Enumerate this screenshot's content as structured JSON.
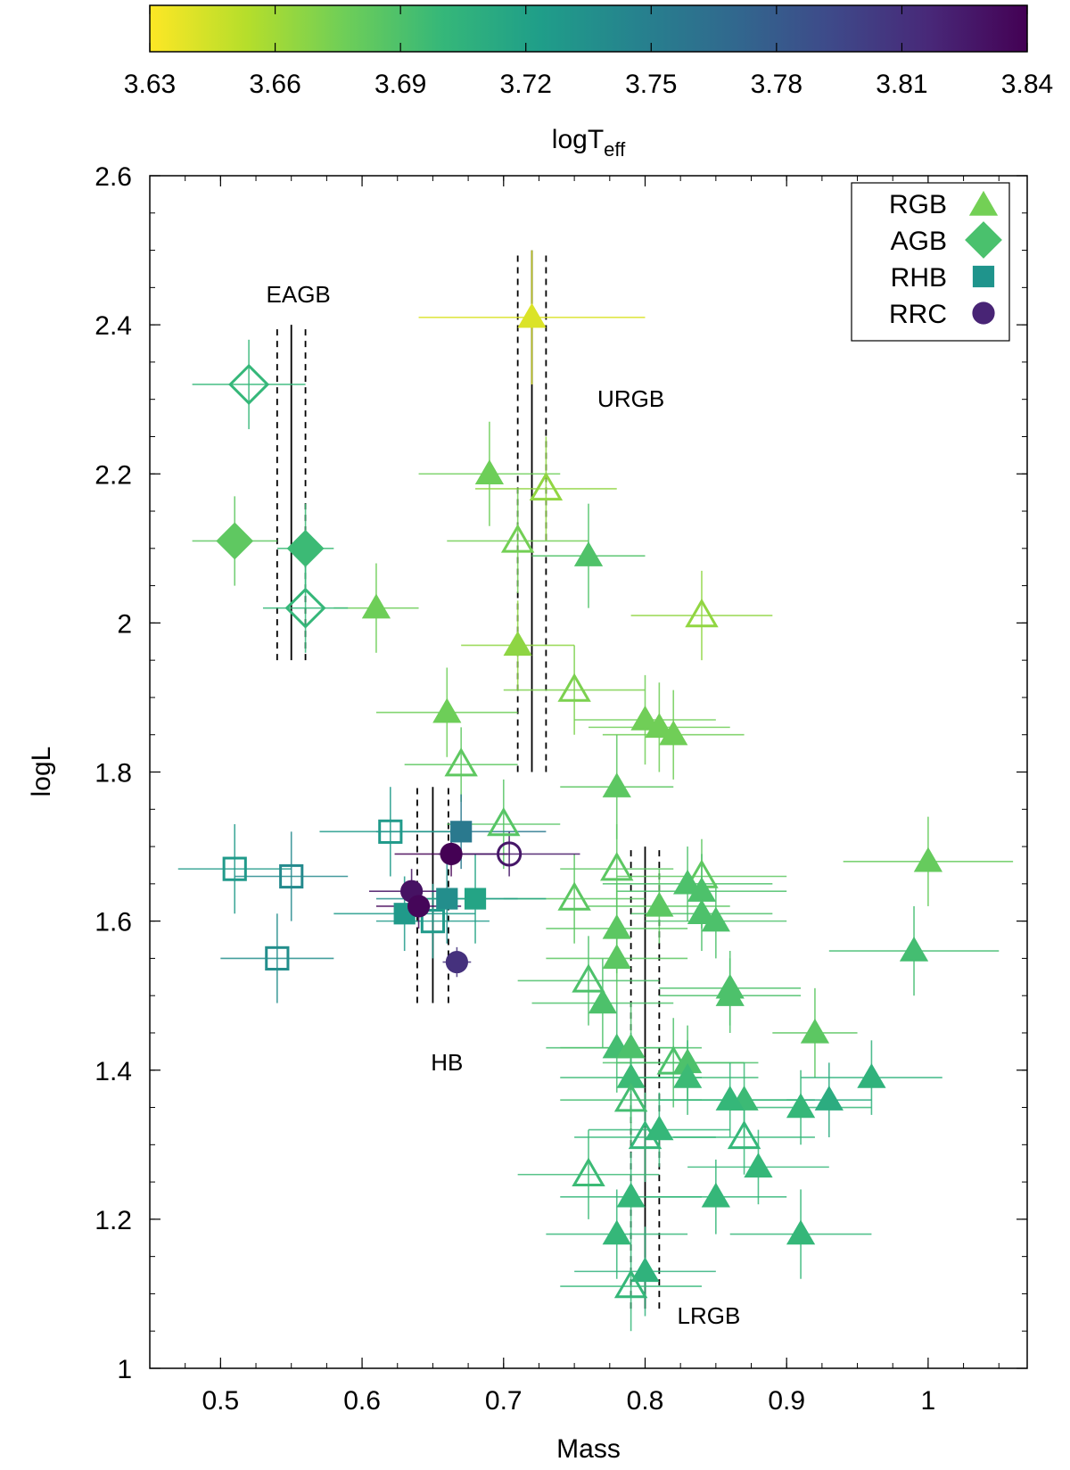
{
  "colorbar": {
    "label_main": "logT",
    "label_sub": "eff",
    "range": [
      3.63,
      3.84
    ],
    "ticks": [
      "3.63",
      "3.66",
      "3.69",
      "3.72",
      "3.75",
      "3.78",
      "3.81",
      "3.84"
    ],
    "colormap": [
      "#fde725",
      "#b5de2b",
      "#6ece58",
      "#35b779",
      "#1f9e89",
      "#26828e",
      "#31688e",
      "#3e4989",
      "#482878",
      "#440154"
    ]
  },
  "chart_data": {
    "type": "scatter",
    "xlabel": "Mass",
    "ylabel": "logL",
    "xlim": [
      0.45,
      1.07
    ],
    "ylim": [
      1.0,
      2.6
    ],
    "xticks": [
      "0.5",
      "0.6",
      "0.7",
      "0.8",
      "0.9",
      "1"
    ],
    "yticks": [
      "1",
      "1.2",
      "1.4",
      "1.6",
      "1.8",
      "2",
      "2.2",
      "2.4",
      "2.6"
    ],
    "legend": {
      "placement": "top-right",
      "entries": [
        {
          "label": "RGB",
          "marker": "triangle",
          "color": "#73d055"
        },
        {
          "label": "AGB",
          "marker": "diamond",
          "color": "#4ac16d"
        },
        {
          "label": "RHB",
          "marker": "square",
          "color": "#1f948c"
        },
        {
          "label": "RRC",
          "marker": "circle",
          "color": "#482475"
        }
      ]
    },
    "region_labels": [
      {
        "text": "EAGB",
        "x": 0.555,
        "y": 2.43
      },
      {
        "text": "URGB",
        "x": 0.79,
        "y": 2.29
      },
      {
        "text": "HB",
        "x": 0.66,
        "y": 1.4
      },
      {
        "text": "LRGB",
        "x": 0.845,
        "y": 1.06
      }
    ],
    "mean_lines": [
      {
        "group": "EAGB",
        "x": 0.55,
        "dx": 0.01,
        "y0": 1.95,
        "y1": 2.4
      },
      {
        "group": "URGB",
        "x": 0.72,
        "dx": 0.01,
        "y0": 1.8,
        "y1": 2.5
      },
      {
        "group": "HB",
        "x": 0.65,
        "dx": 0.011,
        "y0": 1.49,
        "y1": 1.78
      },
      {
        "group": "LRGB",
        "x": 0.8,
        "dx": 0.01,
        "y0": 1.08,
        "y1": 1.7
      }
    ],
    "series": [
      {
        "name": "RGB",
        "marker": "triangle",
        "points": [
          {
            "x": 0.72,
            "y": 2.41,
            "xerr": 0.08,
            "yerr": 0.09,
            "t": 3.641,
            "open": false
          },
          {
            "x": 0.69,
            "y": 2.2,
            "xerr": 0.05,
            "yerr": 0.07,
            "t": 3.677,
            "open": false
          },
          {
            "x": 0.73,
            "y": 2.18,
            "xerr": 0.05,
            "yerr": 0.07,
            "t": 3.665,
            "open": true
          },
          {
            "x": 0.71,
            "y": 2.11,
            "xerr": 0.05,
            "yerr": 0.07,
            "t": 3.675,
            "open": true
          },
          {
            "x": 0.76,
            "y": 2.09,
            "xerr": 0.04,
            "yerr": 0.07,
            "t": 3.689,
            "open": false
          },
          {
            "x": 0.61,
            "y": 2.02,
            "xerr": 0.03,
            "yerr": 0.06,
            "t": 3.677,
            "open": false
          },
          {
            "x": 0.84,
            "y": 2.01,
            "xerr": 0.05,
            "yerr": 0.06,
            "t": 3.665,
            "open": true
          },
          {
            "x": 0.71,
            "y": 1.97,
            "xerr": 0.04,
            "yerr": 0.06,
            "t": 3.666,
            "open": false
          },
          {
            "x": 0.75,
            "y": 1.91,
            "xerr": 0.05,
            "yerr": 0.06,
            "t": 3.672,
            "open": true
          },
          {
            "x": 0.66,
            "y": 1.88,
            "xerr": 0.05,
            "yerr": 0.06,
            "t": 3.677,
            "open": false
          },
          {
            "x": 0.8,
            "y": 1.87,
            "xerr": 0.05,
            "yerr": 0.06,
            "t": 3.676,
            "open": false
          },
          {
            "x": 0.81,
            "y": 1.86,
            "xerr": 0.05,
            "yerr": 0.06,
            "t": 3.676,
            "open": false
          },
          {
            "x": 0.82,
            "y": 1.85,
            "xerr": 0.05,
            "yerr": 0.06,
            "t": 3.676,
            "open": false
          },
          {
            "x": 0.67,
            "y": 1.81,
            "xerr": 0.04,
            "yerr": 0.05,
            "t": 3.683,
            "open": true
          },
          {
            "x": 0.78,
            "y": 1.78,
            "xerr": 0.04,
            "yerr": 0.07,
            "t": 3.684,
            "open": false
          },
          {
            "x": 0.7,
            "y": 1.73,
            "xerr": 0.04,
            "yerr": 0.06,
            "t": 3.686,
            "open": true
          },
          {
            "x": 1.0,
            "y": 1.68,
            "xerr": 0.06,
            "yerr": 0.06,
            "t": 3.68,
            "open": false
          },
          {
            "x": 0.78,
            "y": 1.67,
            "xerr": 0.04,
            "yerr": 0.06,
            "t": 3.684,
            "open": true
          },
          {
            "x": 0.84,
            "y": 1.66,
            "xerr": 0.06,
            "yerr": 0.05,
            "t": 3.683,
            "open": true
          },
          {
            "x": 0.83,
            "y": 1.65,
            "xerr": 0.06,
            "yerr": 0.05,
            "t": 3.69,
            "open": false
          },
          {
            "x": 0.84,
            "y": 1.64,
            "xerr": 0.06,
            "yerr": 0.05,
            "t": 3.69,
            "open": false
          },
          {
            "x": 0.75,
            "y": 1.63,
            "xerr": 0.05,
            "yerr": 0.06,
            "t": 3.684,
            "open": true
          },
          {
            "x": 0.81,
            "y": 1.62,
            "xerr": 0.05,
            "yerr": 0.05,
            "t": 3.684,
            "open": false
          },
          {
            "x": 0.84,
            "y": 1.61,
            "xerr": 0.05,
            "yerr": 0.05,
            "t": 3.69,
            "open": false
          },
          {
            "x": 0.85,
            "y": 1.6,
            "xerr": 0.05,
            "yerr": 0.05,
            "t": 3.69,
            "open": false
          },
          {
            "x": 0.78,
            "y": 1.59,
            "xerr": 0.05,
            "yerr": 0.06,
            "t": 3.684,
            "open": false
          },
          {
            "x": 0.99,
            "y": 1.56,
            "xerr": 0.06,
            "yerr": 0.06,
            "t": 3.694,
            "open": false
          },
          {
            "x": 0.78,
            "y": 1.55,
            "xerr": 0.05,
            "yerr": 0.06,
            "t": 3.684,
            "open": false
          },
          {
            "x": 0.76,
            "y": 1.52,
            "xerr": 0.05,
            "yerr": 0.06,
            "t": 3.69,
            "open": true
          },
          {
            "x": 0.86,
            "y": 1.51,
            "xerr": 0.05,
            "yerr": 0.05,
            "t": 3.69,
            "open": false
          },
          {
            "x": 0.86,
            "y": 1.5,
            "xerr": 0.05,
            "yerr": 0.05,
            "t": 3.69,
            "open": false
          },
          {
            "x": 0.77,
            "y": 1.49,
            "xerr": 0.05,
            "yerr": 0.06,
            "t": 3.69,
            "open": false
          },
          {
            "x": 0.92,
            "y": 1.45,
            "xerr": 0.03,
            "yerr": 0.06,
            "t": 3.684,
            "open": false
          },
          {
            "x": 0.78,
            "y": 1.43,
            "xerr": 0.05,
            "yerr": 0.06,
            "t": 3.694,
            "open": false
          },
          {
            "x": 0.79,
            "y": 1.43,
            "xerr": 0.05,
            "yerr": 0.06,
            "t": 3.69,
            "open": false
          },
          {
            "x": 0.82,
            "y": 1.41,
            "xerr": 0.05,
            "yerr": 0.06,
            "t": 3.69,
            "open": true
          },
          {
            "x": 0.83,
            "y": 1.41,
            "xerr": 0.05,
            "yerr": 0.05,
            "t": 3.69,
            "open": false
          },
          {
            "x": 0.96,
            "y": 1.39,
            "xerr": 0.05,
            "yerr": 0.05,
            "t": 3.705,
            "open": false
          },
          {
            "x": 0.79,
            "y": 1.39,
            "xerr": 0.05,
            "yerr": 0.06,
            "t": 3.697,
            "open": false
          },
          {
            "x": 0.83,
            "y": 1.39,
            "xerr": 0.05,
            "yerr": 0.05,
            "t": 3.697,
            "open": false
          },
          {
            "x": 0.87,
            "y": 1.36,
            "xerr": 0.05,
            "yerr": 0.05,
            "t": 3.697,
            "open": false
          },
          {
            "x": 0.79,
            "y": 1.36,
            "xerr": 0.05,
            "yerr": 0.06,
            "t": 3.694,
            "open": true
          },
          {
            "x": 0.93,
            "y": 1.36,
            "xerr": 0.03,
            "yerr": 0.05,
            "t": 3.71,
            "open": false
          },
          {
            "x": 0.86,
            "y": 1.36,
            "xerr": 0.05,
            "yerr": 0.05,
            "t": 3.7,
            "open": false
          },
          {
            "x": 0.91,
            "y": 1.35,
            "xerr": 0.05,
            "yerr": 0.05,
            "t": 3.7,
            "open": false
          },
          {
            "x": 0.81,
            "y": 1.32,
            "xerr": 0.05,
            "yerr": 0.05,
            "t": 3.7,
            "open": false
          },
          {
            "x": 0.8,
            "y": 1.31,
            "xerr": 0.05,
            "yerr": 0.06,
            "t": 3.7,
            "open": true
          },
          {
            "x": 0.87,
            "y": 1.31,
            "xerr": 0.05,
            "yerr": 0.05,
            "t": 3.7,
            "open": true
          },
          {
            "x": 0.88,
            "y": 1.27,
            "xerr": 0.05,
            "yerr": 0.05,
            "t": 3.7,
            "open": false
          },
          {
            "x": 0.76,
            "y": 1.26,
            "xerr": 0.05,
            "yerr": 0.06,
            "t": 3.697,
            "open": true
          },
          {
            "x": 0.79,
            "y": 1.23,
            "xerr": 0.05,
            "yerr": 0.06,
            "t": 3.7,
            "open": false
          },
          {
            "x": 0.85,
            "y": 1.23,
            "xerr": 0.05,
            "yerr": 0.05,
            "t": 3.7,
            "open": false
          },
          {
            "x": 0.78,
            "y": 1.18,
            "xerr": 0.05,
            "yerr": 0.06,
            "t": 3.7,
            "open": false
          },
          {
            "x": 0.91,
            "y": 1.18,
            "xerr": 0.05,
            "yerr": 0.06,
            "t": 3.7,
            "open": false
          },
          {
            "x": 0.8,
            "y": 1.13,
            "xerr": 0.05,
            "yerr": 0.06,
            "t": 3.705,
            "open": false
          },
          {
            "x": 0.79,
            "y": 1.11,
            "xerr": 0.05,
            "yerr": 0.06,
            "t": 3.7,
            "open": true
          }
        ]
      },
      {
        "name": "AGB",
        "marker": "diamond",
        "points": [
          {
            "x": 0.52,
            "y": 2.32,
            "xerr": 0.04,
            "yerr": 0.06,
            "t": 3.7,
            "open": true
          },
          {
            "x": 0.51,
            "y": 2.11,
            "xerr": 0.03,
            "yerr": 0.06,
            "t": 3.683,
            "open": false
          },
          {
            "x": 0.56,
            "y": 2.1,
            "xerr": 0.02,
            "yerr": 0.06,
            "t": 3.697,
            "open": false
          },
          {
            "x": 0.56,
            "y": 2.02,
            "xerr": 0.03,
            "yerr": 0.06,
            "t": 3.7,
            "open": true
          }
        ]
      },
      {
        "name": "RHB",
        "marker": "square",
        "points": [
          {
            "x": 0.67,
            "y": 1.72,
            "xerr": 0.06,
            "yerr": 0.05,
            "t": 3.755,
            "open": false
          },
          {
            "x": 0.62,
            "y": 1.72,
            "xerr": 0.05,
            "yerr": 0.06,
            "t": 3.727,
            "open": true
          },
          {
            "x": 0.51,
            "y": 1.67,
            "xerr": 0.04,
            "yerr": 0.06,
            "t": 3.727,
            "open": true
          },
          {
            "x": 0.55,
            "y": 1.66,
            "xerr": 0.04,
            "yerr": 0.06,
            "t": 3.74,
            "open": true
          },
          {
            "x": 0.66,
            "y": 1.63,
            "xerr": 0.05,
            "yerr": 0.06,
            "t": 3.737,
            "open": false
          },
          {
            "x": 0.68,
            "y": 1.63,
            "xerr": 0.05,
            "yerr": 0.06,
            "t": 3.718,
            "open": false
          },
          {
            "x": 0.63,
            "y": 1.61,
            "xerr": 0.05,
            "yerr": 0.05,
            "t": 3.727,
            "open": false
          },
          {
            "x": 0.65,
            "y": 1.6,
            "xerr": 0.04,
            "yerr": 0.05,
            "t": 3.727,
            "open": true
          },
          {
            "x": 0.54,
            "y": 1.55,
            "xerr": 0.04,
            "yerr": 0.06,
            "t": 3.737,
            "open": true
          }
        ]
      },
      {
        "name": "RRC",
        "marker": "circle",
        "points": [
          {
            "x": 0.663,
            "y": 1.69,
            "xerr": 0.04,
            "yerr": 0.03,
            "t": 3.84,
            "open": false
          },
          {
            "x": 0.704,
            "y": 1.69,
            "xerr": 0.05,
            "yerr": 0.03,
            "t": 3.827,
            "open": true
          },
          {
            "x": 0.635,
            "y": 1.64,
            "xerr": 0.03,
            "yerr": 0.03,
            "t": 3.83,
            "open": false
          },
          {
            "x": 0.64,
            "y": 1.62,
            "xerr": 0.03,
            "yerr": 0.03,
            "t": 3.837,
            "open": false
          },
          {
            "x": 0.667,
            "y": 1.545,
            "xerr": 0.01,
            "yerr": 0.02,
            "t": 3.81,
            "open": false
          }
        ]
      }
    ]
  }
}
